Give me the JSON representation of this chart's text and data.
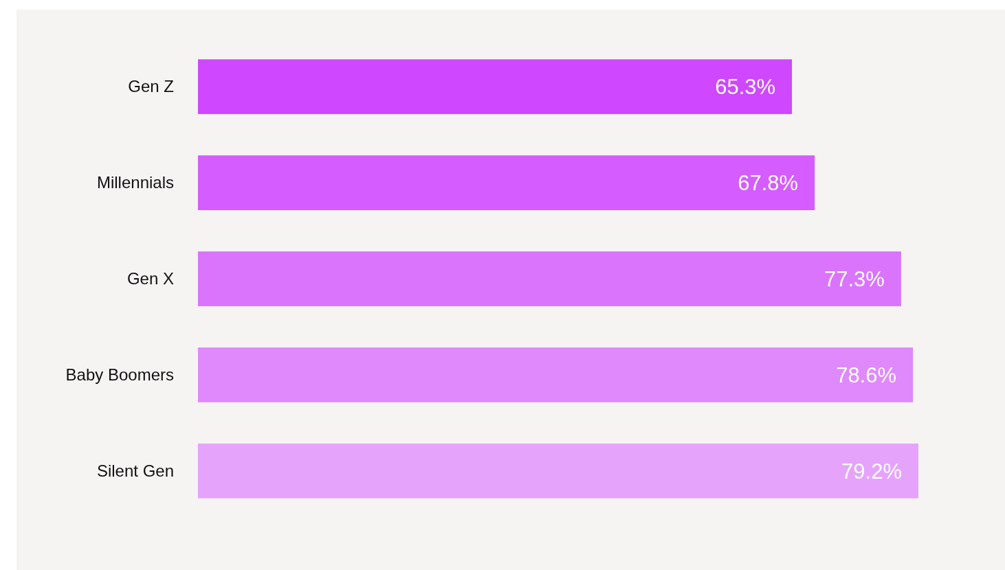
{
  "chart_data": {
    "type": "bar",
    "orientation": "horizontal",
    "categories": [
      "Gen Z",
      "Millennials",
      "Gen X",
      "Baby Boomers",
      "Silent Gen"
    ],
    "values": [
      65.3,
      67.8,
      77.3,
      78.6,
      79.2
    ],
    "colors": [
      "#cf47ff",
      "#d55cff",
      "#da74fc",
      "#df89fc",
      "#e6a3fc"
    ],
    "value_labels": [
      "65.3%",
      "67.8%",
      "77.3%",
      "78.6%",
      "79.2%"
    ]
  }
}
